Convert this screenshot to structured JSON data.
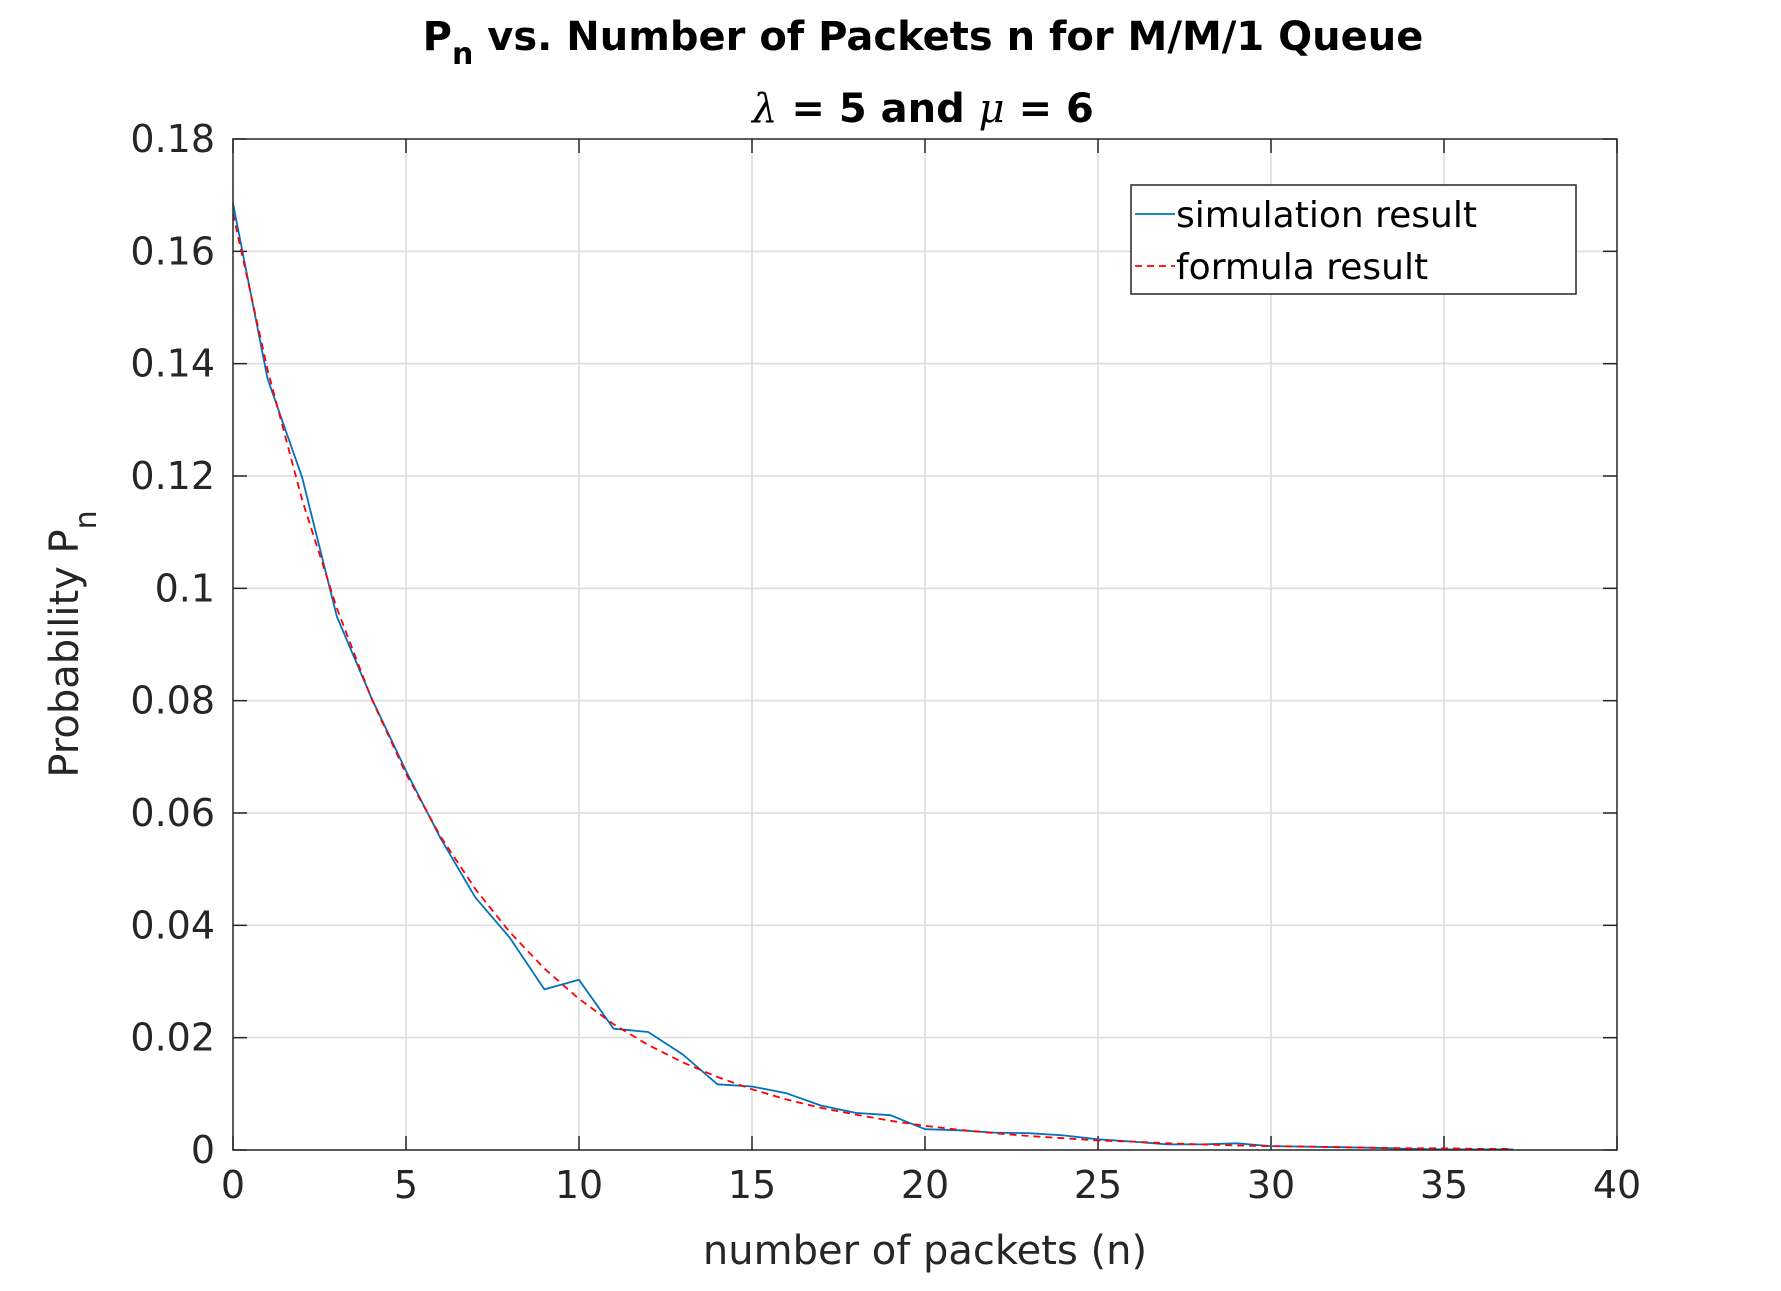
{
  "chart_data": {
    "type": "line",
    "title": {
      "line1": {
        "p": "P",
        "sub": "n",
        "rest": " vs. Number of Packets n for M/M/1 Queue"
      },
      "line2": {
        "lambda": "λ",
        "mid": " = 5 and ",
        "mu": "μ",
        "end": " = 6"
      }
    },
    "xlabel": "number of packets (n)",
    "ylabel": {
      "main": "Probability P",
      "sub": "n"
    },
    "xlim": [
      0,
      40
    ],
    "ylim": [
      0,
      0.18
    ],
    "xticks": [
      0,
      5,
      10,
      15,
      20,
      25,
      30,
      35,
      40
    ],
    "xtick_labels": [
      "0",
      "5",
      "10",
      "15",
      "20",
      "25",
      "30",
      "35",
      "40"
    ],
    "yticks": [
      0,
      0.02,
      0.04,
      0.06,
      0.08,
      0.1,
      0.12,
      0.14,
      0.16,
      0.18
    ],
    "ytick_labels": [
      "0",
      "0.02",
      "0.04",
      "0.06",
      "0.08",
      "0.1",
      "0.12",
      "0.14",
      "0.16",
      "0.18"
    ],
    "grid": true,
    "legend_position": "top-right",
    "series": [
      {
        "name": "simulation result",
        "color": "#0072BD",
        "style": "solid",
        "x": [
          0,
          1,
          2,
          3,
          4,
          5,
          6,
          7,
          8,
          9,
          10,
          11,
          12,
          13,
          14,
          15,
          16,
          17,
          18,
          19,
          20,
          21,
          22,
          23,
          24,
          25,
          26,
          27,
          28,
          29,
          30,
          31,
          32,
          33,
          34,
          35,
          36,
          37
        ],
        "y": [
          0.1685,
          0.1373,
          0.1197,
          0.095,
          0.0805,
          0.0675,
          0.0555,
          0.045,
          0.0378,
          0.0286,
          0.0303,
          0.0216,
          0.021,
          0.017,
          0.0117,
          0.0113,
          0.0101,
          0.0079,
          0.0066,
          0.0062,
          0.0037,
          0.0035,
          0.0031,
          0.003,
          0.0026,
          0.0019,
          0.0015,
          0.001,
          0.001,
          0.0012,
          0.0007,
          0.0006,
          0.0005,
          0.0004,
          0.0002,
          0.0001,
          0.0001,
          0.0001
        ]
      },
      {
        "name": "formula result",
        "color": "#FF0000",
        "style": "dashed",
        "x": [
          0,
          1,
          2,
          3,
          4,
          5,
          6,
          7,
          8,
          9,
          10,
          11,
          12,
          13,
          14,
          15,
          16,
          17,
          18,
          19,
          20,
          21,
          22,
          23,
          24,
          25,
          26,
          27,
          28,
          29,
          30,
          31,
          32,
          33,
          34,
          35,
          36,
          37
        ],
        "y": [
          0.1667,
          0.1389,
          0.1157,
          0.0965,
          0.0804,
          0.067,
          0.0558,
          0.0465,
          0.0388,
          0.0323,
          0.0269,
          0.0224,
          0.0187,
          0.0156,
          0.013,
          0.0108,
          0.009,
          0.0075,
          0.0063,
          0.0052,
          0.0043,
          0.0036,
          0.003,
          0.0025,
          0.0021,
          0.0017,
          0.0015,
          0.0012,
          0.001,
          0.0008,
          0.0007,
          0.0006,
          0.0005,
          0.0004,
          0.0003,
          0.0003,
          0.0002,
          0.0002
        ]
      }
    ]
  }
}
